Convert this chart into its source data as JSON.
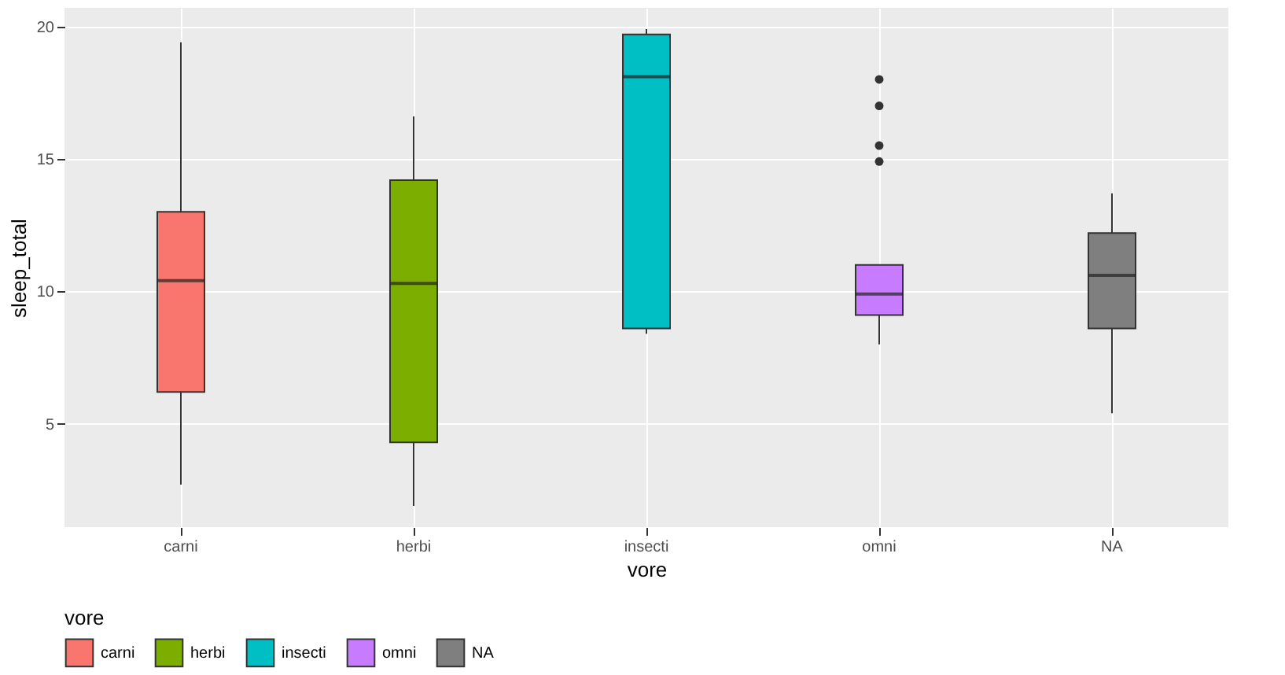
{
  "chart_data": {
    "type": "box",
    "xlabel": "vore",
    "ylabel": "sleep_total",
    "legend_title": "vore",
    "categories": [
      "carni",
      "herbi",
      "insecti",
      "omni",
      "NA"
    ],
    "series": [
      {
        "name": "carni",
        "color": "#f8766d",
        "boxes": [
          {
            "low": 2.7,
            "q1": 6.2,
            "median": 10.4,
            "q3": 13.0,
            "high": 19.4
          },
          null,
          null,
          null,
          null
        ]
      },
      {
        "name": "herbi",
        "color": "#7cae00",
        "boxes": [
          null,
          {
            "low": 1.9,
            "q1": 4.3,
            "median": 10.3,
            "q3": 14.2,
            "high": 16.6
          },
          null,
          null,
          null
        ]
      },
      {
        "name": "insecti",
        "color": "#00bfc4",
        "boxes": [
          null,
          null,
          {
            "low": 8.4,
            "q1": 8.6,
            "median": 18.1,
            "q3": 19.7,
            "high": 19.9
          },
          null,
          null
        ]
      },
      {
        "name": "omni",
        "color": "#c77cff",
        "boxes": [
          null,
          null,
          null,
          {
            "low": 8.0,
            "q1": 9.1,
            "median": 9.9,
            "q3": 11.0,
            "high": 11.0,
            "outliers": [
              14.9,
              15.5,
              17.0,
              18.0
            ]
          },
          null
        ]
      },
      {
        "name": "NA",
        "color": "#7f7f7f",
        "boxes": [
          null,
          null,
          null,
          null,
          {
            "low": 5.4,
            "q1": 8.6,
            "median": 10.6,
            "q3": 12.2,
            "high": 13.7
          }
        ]
      }
    ],
    "ylim": [
      1.1,
      20.7
    ],
    "yticks": [
      5,
      10,
      15,
      20
    ],
    "grid": true,
    "legend": "bottom"
  }
}
